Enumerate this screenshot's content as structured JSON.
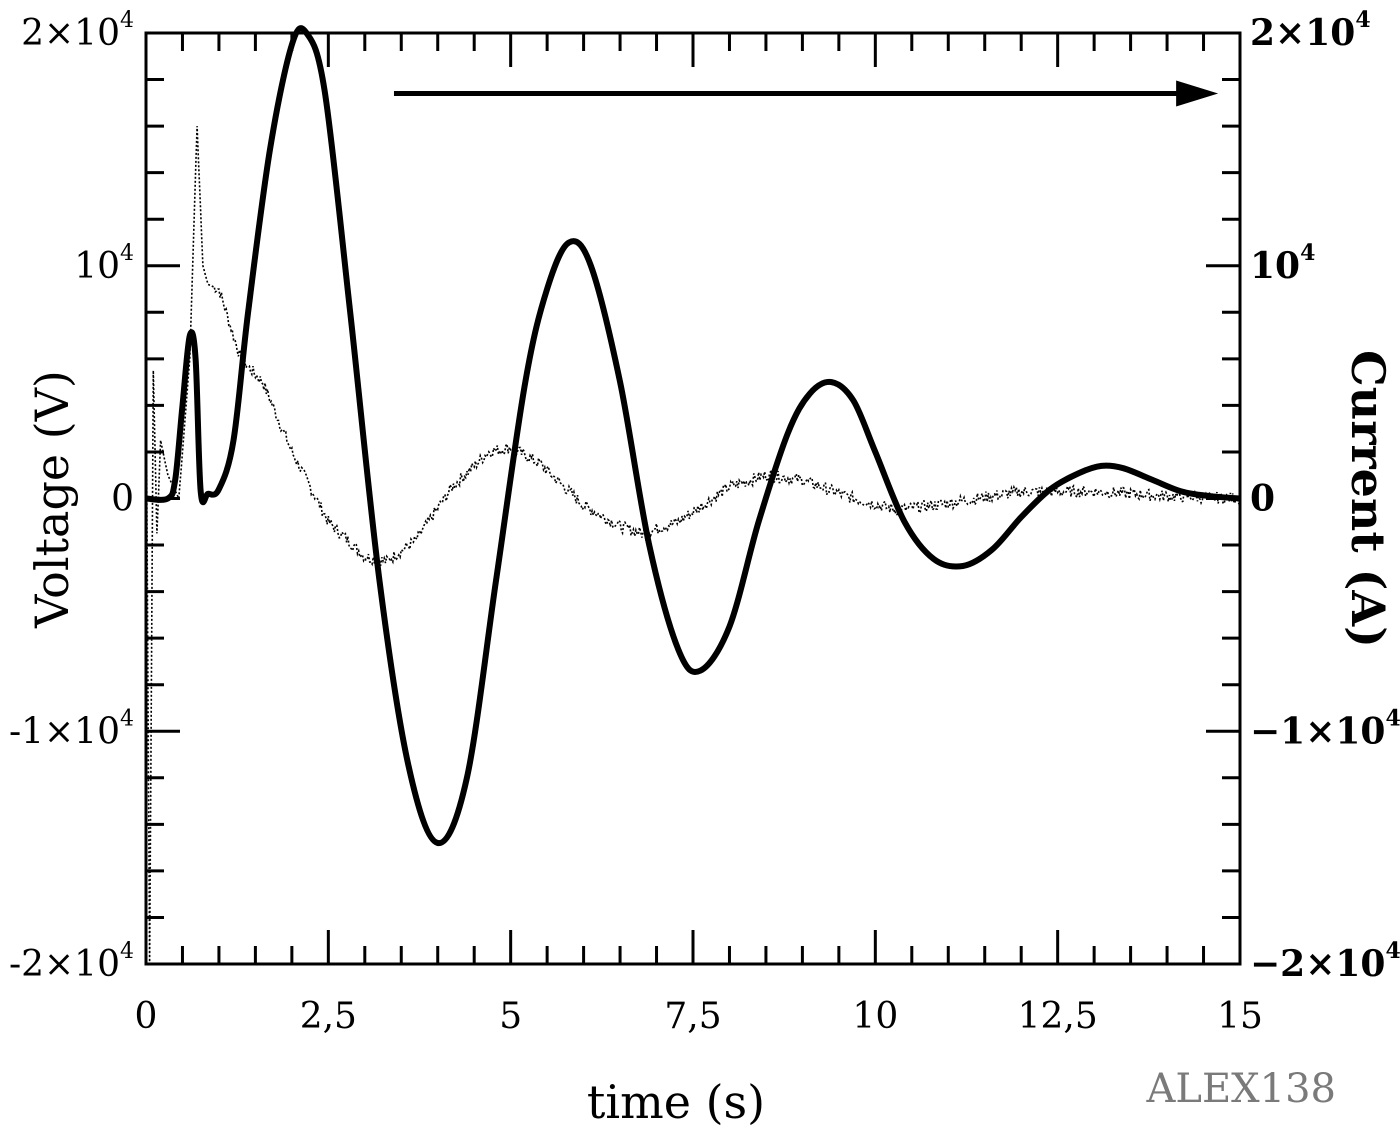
{
  "chart_data": {
    "type": "line",
    "title": "",
    "xlabel": "time (s)",
    "ylabel_left": "Voltage (V)",
    "ylabel_right": "Current (A)",
    "xlim": [
      0,
      15
    ],
    "ylim_left": [
      -20000,
      20000
    ],
    "ylim_right": [
      -20000,
      20000
    ],
    "grid": false,
    "legend": null,
    "x_ticks": [
      {
        "value": 0,
        "label": "0"
      },
      {
        "value": 2.5,
        "label": "2,5"
      },
      {
        "value": 5,
        "label": "5"
      },
      {
        "value": 7.5,
        "label": "7,5"
      },
      {
        "value": 10,
        "label": "10"
      },
      {
        "value": 12.5,
        "label": "12,5"
      },
      {
        "value": 15,
        "label": "15"
      }
    ],
    "x_minor_step": 0.5,
    "y_left_ticks": [
      {
        "value": 20000,
        "base": "2×10",
        "exp": "4"
      },
      {
        "value": 10000,
        "base": "10",
        "exp": "4"
      },
      {
        "value": 0,
        "base": "0",
        "exp": ""
      },
      {
        "value": -10000,
        "base": "-1×10",
        "exp": "4"
      },
      {
        "value": -20000,
        "base": "-2×10",
        "exp": "4"
      }
    ],
    "y_right_ticks": [
      {
        "value": 20000,
        "base": "2×10",
        "exp": "4"
      },
      {
        "value": 10000,
        "base": "10",
        "exp": "4"
      },
      {
        "value": 0,
        "base": "0",
        "exp": ""
      },
      {
        "value": -10000,
        "base": "−1×10",
        "exp": "4"
      },
      {
        "value": -20000,
        "base": "−2×10",
        "exp": "4"
      }
    ],
    "y_minor_step": 2000,
    "series": [
      {
        "name": "Current",
        "axis": "right",
        "style": "solid-thick",
        "x": [
          0,
          0.3,
          0.4,
          0.5,
          0.6,
          0.68,
          0.75,
          0.85,
          1.0,
          1.2,
          1.4,
          1.7,
          2.0,
          2.2,
          2.45,
          2.8,
          3.2,
          3.6,
          4.0,
          4.4,
          4.8,
          5.2,
          5.5,
          5.8,
          6.1,
          6.5,
          6.9,
          7.3,
          7.6,
          8.0,
          8.4,
          8.8,
          9.1,
          9.4,
          9.7,
          10.0,
          10.4,
          10.8,
          11.2,
          11.6,
          12.0,
          12.4,
          12.8,
          13.1,
          13.4,
          13.8,
          14.2,
          14.6,
          15.0
        ],
        "y": [
          0,
          0,
          800,
          4000,
          7000,
          6000,
          300,
          200,
          400,
          2500,
          8000,
          15000,
          19500,
          20000,
          17500,
          8000,
          -3500,
          -11500,
          -14800,
          -12000,
          -3500,
          5000,
          9000,
          11000,
          10000,
          5000,
          -2000,
          -6500,
          -7400,
          -5500,
          -1000,
          2800,
          4500,
          5000,
          4200,
          2000,
          -1000,
          -2600,
          -2900,
          -2200,
          -800,
          400,
          1100,
          1400,
          1300,
          800,
          300,
          100,
          0
        ]
      },
      {
        "name": "Voltage",
        "axis": "left",
        "style": "dotted-thin",
        "x": [
          0,
          0.05,
          0.1,
          0.15,
          0.2,
          0.3,
          0.45,
          0.6,
          0.7,
          0.78,
          0.85,
          1.0,
          1.3,
          1.6,
          2.0,
          2.5,
          3.0,
          3.3,
          3.7,
          4.2,
          4.7,
          5.0,
          5.4,
          6.0,
          6.5,
          6.8,
          7.3,
          8.0,
          8.5,
          9.0,
          9.6,
          10.3,
          11.0,
          12.0,
          13.0,
          14.0,
          15.0
        ],
        "y": [
          6500,
          -20000,
          5500,
          -1500,
          2500,
          1000,
          0,
          6000,
          16000,
          10000,
          9200,
          9000,
          6000,
          5000,
          2000,
          -1000,
          -2500,
          -2700,
          -1800,
          500,
          2000,
          2200,
          1500,
          -300,
          -1200,
          -1500,
          -1000,
          500,
          1000,
          800,
          100,
          -500,
          -200,
          300,
          300,
          100,
          0
        ]
      }
    ],
    "annotations": [
      {
        "type": "arrow",
        "from": [
          3.4,
          17400
        ],
        "to": [
          14.7,
          17400
        ],
        "note": "arrow pointing right toward right axis"
      }
    ]
  },
  "axes": {
    "xlabel": "time (s)",
    "ylabel_left": "Voltage (V)",
    "ylabel_right": "Current (A)"
  },
  "watermark": "ALEX138"
}
